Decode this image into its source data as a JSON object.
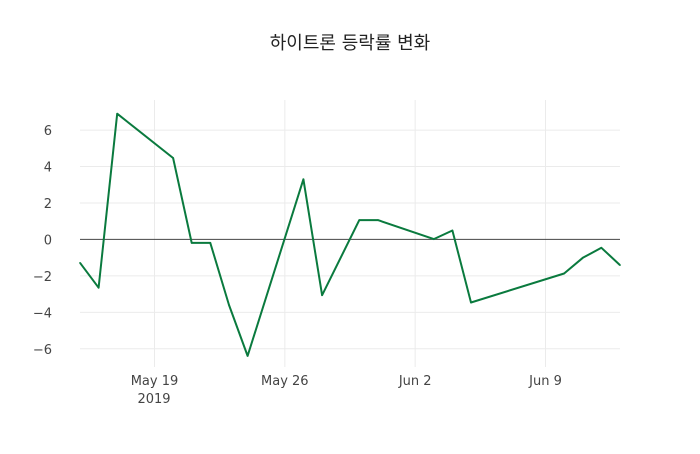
{
  "chart_data": {
    "type": "line",
    "title": "하이트론 등락률 변화",
    "xlabel": "",
    "ylabel": "",
    "x": [
      "2019-05-15",
      "2019-05-16",
      "2019-05-17",
      "2019-05-20",
      "2019-05-21",
      "2019-05-22",
      "2019-05-23",
      "2019-05-24",
      "2019-05-27",
      "2019-05-28",
      "2019-05-30",
      "2019-05-31",
      "2019-06-03",
      "2019-06-04",
      "2019-06-05",
      "2019-06-10",
      "2019-06-11",
      "2019-06-12",
      "2019-06-13"
    ],
    "series": [
      {
        "name": "등락률",
        "color": "#0a7a3e",
        "values": [
          -1.28,
          -2.65,
          6.9,
          4.47,
          -0.19,
          -0.19,
          -3.6,
          -6.39,
          3.3,
          -3.06,
          1.06,
          1.06,
          0.02,
          0.49,
          -3.46,
          -1.87,
          -1.01,
          -0.46,
          -1.41
        ]
      }
    ],
    "xlim": [
      "2019-05-15",
      "2019-06-13"
    ],
    "ylim": [
      -7.0,
      7.65
    ],
    "yticks": [
      -6,
      -4,
      -2,
      0,
      2,
      4,
      6
    ],
    "ytick_labels": [
      "−6",
      "−4",
      "−2",
      "0",
      "2",
      "4",
      "6"
    ],
    "xticks": [
      "2019-05-19",
      "2019-05-26",
      "2019-06-02",
      "2019-06-09"
    ],
    "xtick_labels": [
      "May 19",
      "May 26",
      "Jun 2",
      "Jun 9"
    ],
    "xtick_sublabel": "2019",
    "grid": true,
    "zeroline": true
  }
}
